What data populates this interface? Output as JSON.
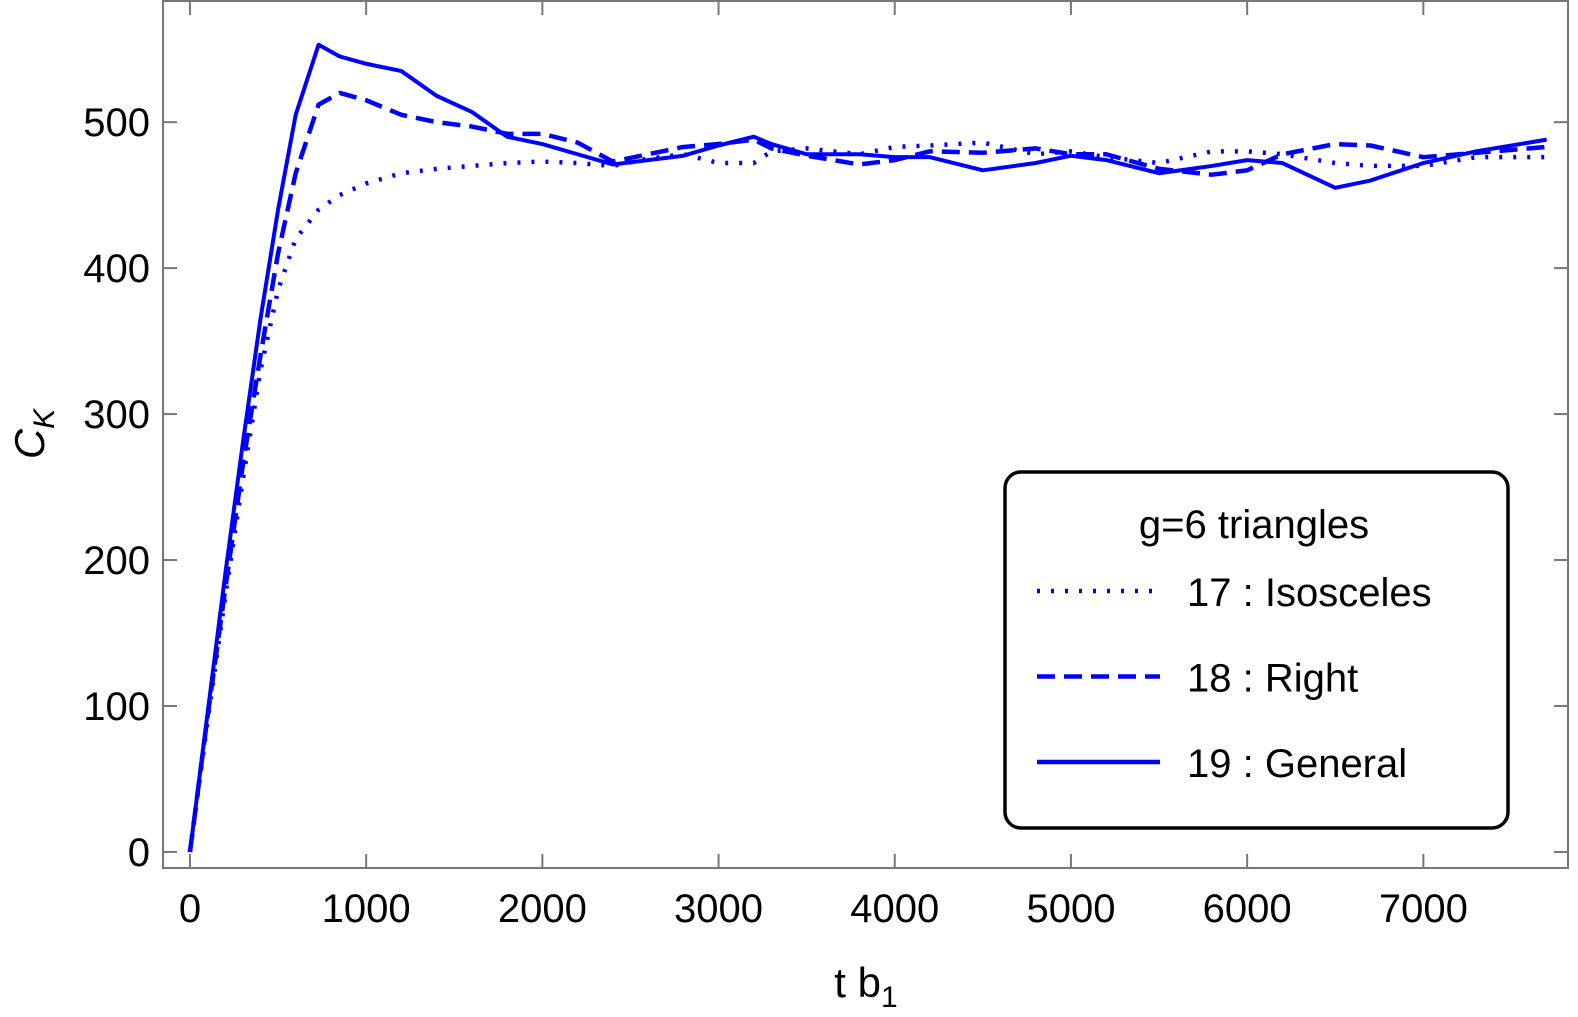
{
  "chart_data": {
    "type": "line",
    "x_label": {
      "text": "t b",
      "subscript": "1"
    },
    "y_label": {
      "text": "C",
      "subscript": "K"
    },
    "x": [
      0,
      100,
      200,
      300,
      400,
      500,
      600,
      730,
      850,
      1000,
      1200,
      1400,
      1600,
      1800,
      2000,
      2200,
      2400,
      2600,
      2800,
      3000,
      3200,
      3300,
      3500,
      3800,
      4000,
      4200,
      4500,
      4800,
      5000,
      5200,
      5500,
      5800,
      6000,
      6200,
      6500,
      6700,
      7000,
      7300,
      7700
    ],
    "series": [
      {
        "name": "17 : Isosceles",
        "color": "#0000ff",
        "dash": "dotted",
        "values": [
          0,
          90,
          175,
          255,
          330,
          385,
          420,
          440,
          450,
          458,
          465,
          468,
          470,
          472,
          473,
          472,
          470,
          475,
          478,
          472,
          472,
          480,
          482,
          478,
          483,
          484,
          486,
          478,
          480,
          476,
          472,
          480,
          480,
          478,
          472,
          470,
          470,
          476,
          476
        ]
      },
      {
        "name": "18 : Right",
        "color": "#0000ff",
        "dash": "dashed",
        "values": [
          0,
          93,
          180,
          265,
          340,
          410,
          465,
          512,
          520,
          515,
          505,
          500,
          497,
          492,
          492,
          486,
          473,
          478,
          483,
          485,
          488,
          482,
          477,
          471,
          474,
          480,
          479,
          482,
          478,
          478,
          468,
          464,
          467,
          478,
          485,
          484,
          476,
          479,
          483
        ]
      },
      {
        "name": "19 : General",
        "color": "#0000ff",
        "dash": "solid",
        "values": [
          0,
          95,
          190,
          280,
          365,
          440,
          505,
          553,
          545,
          540,
          535,
          518,
          507,
          490,
          485,
          478,
          471,
          474,
          477,
          484,
          490,
          485,
          478,
          478,
          476,
          476,
          467,
          472,
          477,
          474,
          465,
          470,
          474,
          472,
          455,
          460,
          472,
          480,
          488
        ]
      }
    ],
    "legend_title": "g=6 triangles",
    "legend_position": "lower right",
    "xlim": [
      -153,
      7821
    ],
    "ylim": [
      -11,
      583
    ],
    "xticks": [
      0,
      1000,
      2000,
      3000,
      4000,
      5000,
      6000,
      7000
    ],
    "yticks": [
      0,
      100,
      200,
      300,
      400,
      500
    ]
  }
}
